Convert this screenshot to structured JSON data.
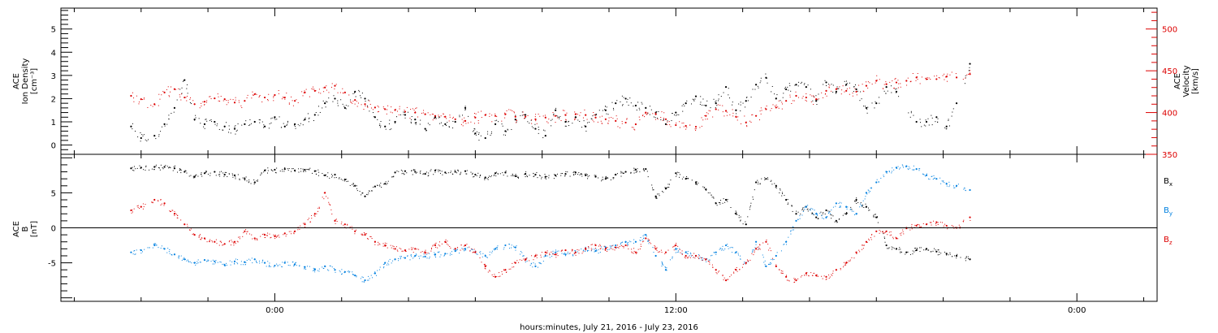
{
  "chart_data": [
    {
      "type": "scatter",
      "panel": "top",
      "left_axis": {
        "label_lines": [
          "ACE",
          "Ion Density",
          "[cm⁻³]"
        ],
        "ticks": [
          "0",
          "1",
          "2",
          "3",
          "4",
          "5"
        ],
        "range": [
          -0.4,
          5.9
        ],
        "color": "#000000"
      },
      "right_axis": {
        "label_lines": [
          "ACE",
          "Velocity",
          "[km/s]"
        ],
        "ticks": [
          "350",
          "400",
          "450",
          "500"
        ],
        "range": [
          350,
          525
        ],
        "color": "#dd0000"
      },
      "series": [
        {
          "axis": "left",
          "color": "#000000",
          "x": [
            -4.3,
            -4.0,
            -3.6,
            -3.3,
            -3.0,
            -2.7,
            -2.4,
            -2.1,
            -1.8,
            -1.5,
            -1.2,
            -0.9,
            -0.6,
            -0.3,
            0.0,
            0.3,
            0.6,
            0.9,
            1.2,
            1.5,
            1.8,
            2.1,
            2.4,
            2.7,
            3.0,
            3.3,
            3.6,
            3.9,
            4.2,
            4.5,
            4.8,
            5.1,
            5.4,
            5.7,
            6.0,
            6.3,
            6.6,
            6.9,
            7.2,
            7.5,
            7.8,
            8.1,
            8.4,
            8.7,
            9.0,
            9.3,
            9.6,
            9.9,
            10.2,
            10.5,
            10.8,
            11.1,
            11.4,
            11.7,
            12.0,
            12.3,
            12.6,
            12.9,
            13.2,
            13.5,
            13.8,
            14.1,
            14.4,
            14.7,
            15.0,
            15.3,
            15.6,
            15.9,
            16.2,
            16.5,
            16.8,
            17.1,
            17.4,
            17.7,
            18.0,
            18.3,
            18.6,
            19.2,
            19.5,
            19.8,
            20.1,
            20.4,
            20.8
          ],
          "y": [
            0.8,
            0.3,
            0.4,
            0.9,
            1.6,
            2.8,
            1.1,
            0.9,
            1.0,
            0.8,
            0.7,
            0.9,
            1.0,
            0.8,
            1.2,
            0.8,
            0.9,
            1.1,
            1.3,
            1.8,
            2.0,
            1.6,
            2.3,
            2.0,
            1.2,
            0.8,
            1.0,
            1.3,
            1.1,
            0.7,
            1.2,
            0.9,
            1.0,
            1.6,
            0.5,
            0.3,
            0.9,
            0.6,
            1.1,
            1.3,
            0.7,
            0.4,
            1.5,
            1.0,
            1.2,
            0.8,
            1.3,
            1.5,
            1.8,
            2.0,
            1.7,
            1.6,
            1.4,
            0.9,
            1.4,
            1.8,
            2.1,
            1.7,
            1.8,
            2.5,
            1.5,
            1.9,
            2.6,
            2.9,
            2.0,
            2.4,
            2.6,
            2.5,
            1.9,
            2.7,
            2.3,
            2.6,
            2.4,
            1.6,
            1.8,
            2.5,
            2.3,
            1.0,
            1.0,
            1.2,
            0.8,
            1.8,
            3.5
          ]
        },
        {
          "axis": "right",
          "color": "#dd0000",
          "x": [
            -4.3,
            -4.0,
            -3.6,
            -3.3,
            -3.0,
            -2.7,
            -2.4,
            -2.1,
            -1.8,
            -1.5,
            -1.2,
            -0.9,
            -0.6,
            -0.3,
            0.0,
            0.3,
            0.6,
            0.9,
            1.2,
            1.5,
            1.8,
            2.1,
            2.4,
            2.7,
            3.0,
            3.3,
            3.6,
            3.9,
            4.2,
            4.5,
            4.8,
            5.1,
            5.4,
            5.7,
            6.0,
            6.3,
            6.6,
            6.9,
            7.2,
            7.5,
            7.8,
            8.1,
            8.4,
            8.7,
            9.0,
            9.3,
            9.6,
            9.9,
            10.2,
            10.5,
            10.8,
            11.1,
            11.4,
            11.7,
            12.0,
            12.3,
            12.6,
            12.9,
            13.2,
            13.5,
            13.8,
            14.1,
            14.4,
            14.7,
            15.0,
            15.3,
            15.6,
            15.9,
            16.2,
            16.5,
            16.8,
            17.1,
            17.4,
            17.7,
            18.0,
            18.3,
            18.6,
            18.9,
            19.2,
            19.5,
            19.8,
            20.1,
            20.4,
            20.8
          ],
          "y": [
            420,
            416,
            410,
            424,
            428,
            418,
            410,
            413,
            417,
            416,
            412,
            414,
            422,
            418,
            421,
            418,
            414,
            424,
            426,
            430,
            432,
            424,
            415,
            410,
            406,
            404,
            403,
            401,
            400,
            398,
            396,
            395,
            392,
            390,
            394,
            397,
            396,
            398,
            395,
            395,
            392,
            394,
            396,
            397,
            398,
            397,
            394,
            392,
            390,
            388,
            386,
            400,
            398,
            392,
            385,
            384,
            383,
            396,
            404,
            402,
            395,
            388,
            396,
            404,
            406,
            414,
            420,
            418,
            416,
            426,
            428,
            426,
            425,
            432,
            438,
            434,
            436,
            438,
            442,
            440,
            440,
            443,
            442,
            446
          ]
        }
      ]
    },
    {
      "type": "scatter",
      "panel": "bottom",
      "left_axis": {
        "label_lines": [
          "ACE",
          "B",
          "[nT]"
        ],
        "ticks": [
          "-5",
          "0",
          "5"
        ],
        "range": [
          -10.5,
          10.5
        ],
        "color": "#000000"
      },
      "zero_line": true,
      "series": [
        {
          "name": "B",
          "name_subscript": "x",
          "color": "#000000",
          "x": [
            -4.3,
            -4.0,
            -3.6,
            -3.3,
            -3.0,
            -2.7,
            -2.4,
            -2.1,
            -1.8,
            -1.5,
            -1.2,
            -0.9,
            -0.6,
            -0.3,
            0.0,
            0.3,
            0.6,
            0.9,
            1.2,
            1.5,
            1.8,
            2.1,
            2.4,
            2.7,
            3.0,
            3.3,
            3.6,
            3.9,
            4.2,
            4.5,
            4.8,
            5.1,
            5.4,
            5.7,
            6.0,
            6.3,
            6.6,
            6.9,
            7.2,
            7.5,
            7.8,
            8.1,
            8.4,
            8.7,
            9.0,
            9.3,
            9.6,
            9.9,
            10.2,
            10.5,
            10.8,
            11.1,
            11.4,
            11.7,
            12.0,
            12.3,
            12.6,
            12.9,
            13.2,
            13.5,
            13.8,
            14.1,
            14.4,
            14.7,
            15.0,
            15.3,
            15.6,
            15.9,
            16.2,
            16.5,
            16.8,
            17.1,
            17.4,
            17.7,
            18.0,
            18.3,
            18.6,
            18.9,
            19.2,
            19.5,
            19.8,
            20.1,
            20.4,
            20.8
          ],
          "y": [
            8.5,
            8.6,
            8.7,
            8.7,
            8.5,
            8.0,
            7.3,
            7.8,
            8.0,
            7.6,
            7.5,
            7.0,
            6.5,
            8.2,
            8.3,
            8.4,
            8.2,
            8.3,
            8.1,
            7.5,
            7.6,
            6.9,
            6.0,
            4.5,
            5.9,
            6.3,
            7.9,
            8.1,
            8.0,
            7.7,
            8.2,
            7.9,
            8.0,
            8.1,
            7.6,
            7.2,
            7.8,
            7.9,
            7.4,
            7.7,
            7.6,
            7.3,
            7.5,
            7.7,
            7.9,
            7.5,
            7.3,
            7.0,
            7.6,
            8.0,
            8.3,
            8.4,
            4.5,
            5.6,
            7.8,
            7.0,
            6.5,
            5.5,
            3.5,
            4.0,
            2.0,
            0.5,
            6.5,
            7.0,
            6.0,
            4.0,
            2.0,
            3.0,
            1.5,
            2.5,
            1.0,
            2.0,
            4.0,
            3.0,
            1.5,
            -2.5,
            -3.0,
            -3.5,
            -3.2,
            -3.0,
            -3.4,
            -3.7,
            -4.0,
            -4.5
          ]
        },
        {
          "name": "B",
          "name_subscript": "y",
          "color": "#0080e0",
          "x": [
            -4.3,
            -4.0,
            -3.6,
            -3.3,
            -3.0,
            -2.7,
            -2.4,
            -2.1,
            -1.8,
            -1.5,
            -1.2,
            -0.9,
            -0.6,
            -0.3,
            0.0,
            0.3,
            0.6,
            0.9,
            1.2,
            1.5,
            1.8,
            2.1,
            2.4,
            2.7,
            3.0,
            3.3,
            3.6,
            3.9,
            4.2,
            4.5,
            4.8,
            5.1,
            5.4,
            5.7,
            6.0,
            6.3,
            6.6,
            6.9,
            7.2,
            7.5,
            7.8,
            8.1,
            8.4,
            8.7,
            9.0,
            9.3,
            9.6,
            9.9,
            10.2,
            10.5,
            10.8,
            11.1,
            11.4,
            11.7,
            12.0,
            12.3,
            12.6,
            12.9,
            13.2,
            13.5,
            13.8,
            14.1,
            14.4,
            14.7,
            15.0,
            15.3,
            15.6,
            15.9,
            16.2,
            16.5,
            16.8,
            17.1,
            17.4,
            17.7,
            18.0,
            18.3,
            18.6,
            18.9,
            19.2,
            19.5,
            19.8,
            20.1,
            20.4,
            20.8
          ],
          "y": [
            -3.5,
            -3.2,
            -2.5,
            -3.0,
            -3.8,
            -4.5,
            -5.0,
            -4.6,
            -4.8,
            -5.3,
            -4.8,
            -4.9,
            -4.5,
            -5.0,
            -5.4,
            -5.0,
            -5.2,
            -5.6,
            -5.9,
            -5.5,
            -6.0,
            -6.3,
            -6.8,
            -7.5,
            -6.5,
            -5.0,
            -4.5,
            -4.3,
            -4.0,
            -4.1,
            -3.8,
            -3.7,
            -3.3,
            -3.0,
            -3.5,
            -4.0,
            -3.0,
            -2.5,
            -2.8,
            -4.5,
            -5.5,
            -4.0,
            -3.5,
            -3.8,
            -3.5,
            -3.0,
            -3.3,
            -2.8,
            -2.5,
            -2.0,
            -2.0,
            -1.0,
            -4.0,
            -6.0,
            -3.0,
            -3.5,
            -4.0,
            -4.5,
            -3.5,
            -2.5,
            -3.5,
            -5.0,
            -2.0,
            -5.5,
            -4.0,
            -2.0,
            1.0,
            3.0,
            2.0,
            1.5,
            3.5,
            3.0,
            2.0,
            5.0,
            6.5,
            8.0,
            8.6,
            8.8,
            8.4,
            7.5,
            7.0,
            6.3,
            6.0,
            5.4
          ]
        },
        {
          "name": "B",
          "name_subscript": "z",
          "color": "#dd0000",
          "x": [
            -4.3,
            -4.0,
            -3.6,
            -3.3,
            -3.0,
            -2.7,
            -2.4,
            -2.1,
            -1.8,
            -1.5,
            -1.2,
            -0.9,
            -0.6,
            -0.3,
            0.0,
            0.3,
            0.6,
            0.9,
            1.2,
            1.5,
            1.8,
            2.1,
            2.4,
            2.7,
            3.0,
            3.3,
            3.6,
            3.9,
            4.2,
            4.5,
            4.8,
            5.1,
            5.4,
            5.7,
            6.0,
            6.3,
            6.6,
            6.9,
            7.2,
            7.5,
            7.8,
            8.1,
            8.4,
            8.7,
            9.0,
            9.3,
            9.6,
            9.9,
            10.2,
            10.5,
            10.8,
            11.1,
            11.4,
            11.7,
            12.0,
            12.3,
            12.6,
            12.9,
            13.2,
            13.5,
            13.8,
            14.1,
            14.4,
            14.7,
            15.0,
            15.3,
            15.6,
            15.9,
            16.2,
            16.5,
            16.8,
            17.1,
            17.4,
            17.7,
            18.0,
            18.3,
            18.6,
            18.9,
            19.2,
            19.5,
            19.8,
            20.1,
            20.4,
            20.8
          ],
          "y": [
            2.5,
            3.0,
            4.0,
            3.5,
            2.0,
            0.5,
            -1.0,
            -1.5,
            -2.0,
            -2.3,
            -2.0,
            -0.5,
            -1.5,
            -1.0,
            -1.2,
            -0.8,
            -0.5,
            0.5,
            2.0,
            5.0,
            1.0,
            0.5,
            -0.5,
            -1.0,
            -2.0,
            -2.5,
            -3.0,
            -3.2,
            -3.0,
            -3.5,
            -2.5,
            -2.0,
            -3.0,
            -2.5,
            -3.5,
            -5.5,
            -7.0,
            -6.0,
            -5.0,
            -4.5,
            -4.0,
            -3.5,
            -3.8,
            -3.2,
            -3.5,
            -3.0,
            -2.5,
            -3.0,
            -2.8,
            -2.5,
            -3.5,
            -1.5,
            -3.0,
            -3.5,
            -2.5,
            -4.0,
            -4.0,
            -4.5,
            -6.0,
            -7.5,
            -6.0,
            -5.0,
            -3.0,
            -2.0,
            -5.5,
            -7.0,
            -7.5,
            -6.5,
            -6.8,
            -7.0,
            -6.0,
            -5.0,
            -3.5,
            -2.0,
            -0.5,
            -0.5,
            -1.5,
            0.0,
            0.3,
            0.5,
            0.8,
            0.3,
            0.0,
            1.5
          ]
        }
      ]
    }
  ],
  "x_axis": {
    "range_hours": [
      -6.4,
      26.4
    ],
    "major_ticks": [
      0,
      12,
      24
    ],
    "tick_labels": [
      "0:00",
      "12:00",
      "0:00"
    ],
    "minor_tick_step_hours": 2,
    "caption": "hours:minutes, July 21, 2016 - July 23, 2016"
  }
}
